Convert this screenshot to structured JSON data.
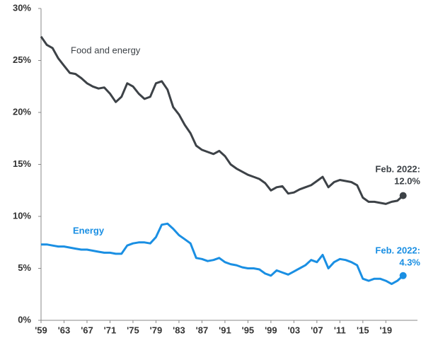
{
  "chart_data": {
    "type": "line",
    "x": [
      1959,
      1960,
      1961,
      1962,
      1963,
      1964,
      1965,
      1966,
      1967,
      1968,
      1969,
      1970,
      1971,
      1972,
      1973,
      1974,
      1975,
      1976,
      1977,
      1978,
      1979,
      1980,
      1981,
      1982,
      1983,
      1984,
      1985,
      1986,
      1987,
      1988,
      1989,
      1990,
      1991,
      1992,
      1993,
      1994,
      1995,
      1996,
      1997,
      1998,
      1999,
      2000,
      2001,
      2002,
      2003,
      2004,
      2005,
      2006,
      2007,
      2008,
      2009,
      2010,
      2011,
      2012,
      2013,
      2014,
      2015,
      2016,
      2017,
      2018,
      2019,
      2020,
      2021,
      2022
    ],
    "series": [
      {
        "name": "Food and energy",
        "color": "#3d4247",
        "end_note": "Feb. 2022:",
        "end_label": "12.0%",
        "values": [
          27.3,
          26.5,
          26.2,
          25.2,
          24.5,
          23.8,
          23.7,
          23.3,
          22.8,
          22.5,
          22.3,
          22.4,
          21.8,
          21.0,
          21.5,
          22.8,
          22.5,
          21.8,
          21.3,
          21.5,
          22.8,
          23.0,
          22.2,
          20.5,
          19.8,
          18.8,
          18.0,
          16.8,
          16.4,
          16.2,
          16.0,
          16.3,
          15.8,
          15.0,
          14.6,
          14.3,
          14.0,
          13.8,
          13.6,
          13.2,
          12.5,
          12.8,
          12.9,
          12.2,
          12.3,
          12.6,
          12.8,
          13.0,
          13.4,
          13.8,
          12.8,
          13.3,
          13.5,
          13.4,
          13.3,
          13.0,
          11.8,
          11.4,
          11.4,
          11.3,
          11.2,
          11.4,
          11.5,
          12.0
        ]
      },
      {
        "name": "Energy",
        "color": "#1a8fe3",
        "end_note": "Feb. 2022:",
        "end_label": "4.3%",
        "values": [
          7.3,
          7.3,
          7.2,
          7.1,
          7.1,
          7.0,
          6.9,
          6.8,
          6.8,
          6.7,
          6.6,
          6.5,
          6.5,
          6.4,
          6.4,
          7.2,
          7.4,
          7.5,
          7.5,
          7.4,
          8.0,
          9.2,
          9.3,
          8.8,
          8.2,
          7.8,
          7.4,
          6.0,
          5.9,
          5.7,
          5.8,
          6.0,
          5.6,
          5.4,
          5.3,
          5.1,
          5.0,
          5.0,
          4.9,
          4.5,
          4.3,
          4.8,
          4.6,
          4.4,
          4.7,
          5.0,
          5.3,
          5.8,
          5.6,
          6.3,
          5.0,
          5.6,
          5.9,
          5.8,
          5.6,
          5.3,
          4.0,
          3.8,
          4.0,
          4.0,
          3.8,
          3.5,
          3.8,
          4.3
        ]
      }
    ],
    "xlim": [
      1959,
      2024.5
    ],
    "xticks": [
      {
        "value": 1959,
        "label": "'59"
      },
      {
        "value": 1963,
        "label": "'63"
      },
      {
        "value": 1967,
        "label": "'67"
      },
      {
        "value": 1971,
        "label": "'71"
      },
      {
        "value": 1975,
        "label": "'75"
      },
      {
        "value": 1979,
        "label": "'79"
      },
      {
        "value": 1983,
        "label": "'83"
      },
      {
        "value": 1987,
        "label": "'87"
      },
      {
        "value": 1991,
        "label": "'91"
      },
      {
        "value": 1995,
        "label": "'95"
      },
      {
        "value": 1999,
        "label": "'99"
      },
      {
        "value": 2003,
        "label": "'03"
      },
      {
        "value": 2007,
        "label": "'07"
      },
      {
        "value": 2011,
        "label": "'11"
      },
      {
        "value": 2015,
        "label": "'15"
      },
      {
        "value": 2019,
        "label": "'19"
      }
    ],
    "ylim": [
      0,
      30
    ],
    "yticks": [
      {
        "value": 0,
        "label": "0%"
      },
      {
        "value": 5,
        "label": "5%"
      },
      {
        "value": 10,
        "label": "10%"
      },
      {
        "value": 15,
        "label": "15%"
      },
      {
        "value": 20,
        "label": "20%"
      },
      {
        "value": 25,
        "label": "25%"
      },
      {
        "value": 30,
        "label": "30%"
      }
    ]
  }
}
